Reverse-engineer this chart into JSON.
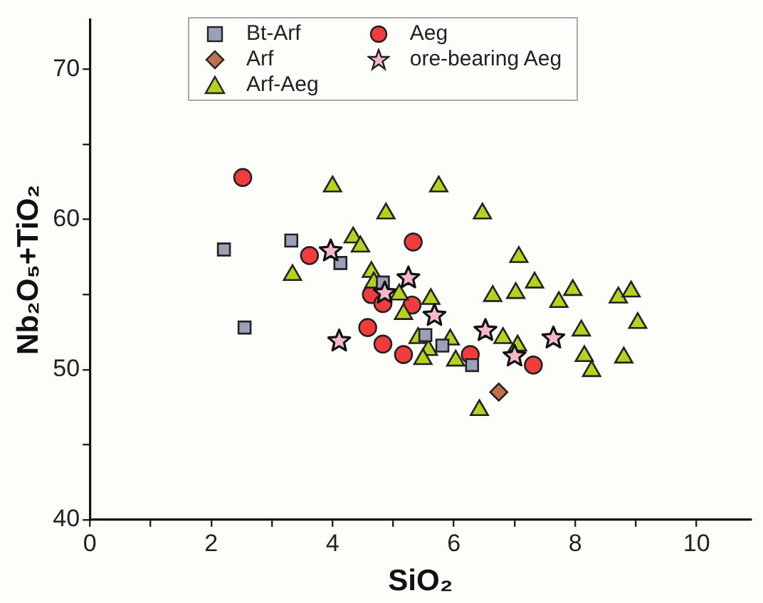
{
  "chart_data": {
    "type": "scatter",
    "xlabel": "SiO₂",
    "ylabel": "Nb₂O₅+TiO₂",
    "xlim": [
      0,
      10.9
    ],
    "ylim": [
      40,
      73.3
    ],
    "xticks": [
      0,
      {
        "value": 1,
        "label": null
      },
      2,
      {
        "value": 3,
        "label": null
      },
      4,
      {
        "value": 5,
        "label": null
      },
      6,
      {
        "value": 7,
        "label": null
      },
      8,
      {
        "value": 9,
        "label": null
      },
      10
    ],
    "yticks": [
      40,
      {
        "value": 45,
        "label": null
      },
      50,
      {
        "value": 55,
        "label": null
      },
      60,
      {
        "value": 65,
        "label": null
      },
      70
    ],
    "grid": false,
    "legend": "top left",
    "series": [
      {
        "name": "Bt-Arf",
        "color": "#9aa0b8",
        "marker": "square",
        "x": [
          2.21,
          2.55,
          3.32,
          4.13,
          4.83,
          5.53,
          5.81,
          6.3
        ],
        "values": [
          58.0,
          52.8,
          58.6,
          57.1,
          55.8,
          52.3,
          51.6,
          50.3
        ]
      },
      {
        "name": "Arf",
        "color": "#c0704c",
        "marker": "diamond",
        "x": [
          6.74
        ],
        "values": [
          48.5
        ]
      },
      {
        "name": "Arf-Aeg",
        "color": "#b8d020",
        "marker": "triangle",
        "x": [
          4.0,
          5.75,
          4.88,
          6.47,
          4.34,
          4.46,
          3.34,
          4.64,
          4.68,
          5.1,
          5.62,
          5.17,
          6.64,
          7.07,
          7.33,
          7.02,
          7.96,
          7.73,
          8.71,
          8.92,
          9.03,
          8.1,
          8.15,
          8.27,
          8.8,
          5.41,
          5.58,
          5.49,
          5.94,
          6.03,
          6.81,
          7.05,
          6.42
        ],
        "values": [
          62.2,
          62.2,
          60.4,
          60.4,
          58.8,
          58.2,
          56.3,
          56.5,
          55.8,
          55.0,
          54.7,
          53.7,
          54.9,
          57.5,
          55.8,
          55.1,
          55.3,
          54.5,
          54.8,
          55.2,
          53.1,
          52.6,
          50.9,
          49.9,
          50.8,
          52.1,
          51.3,
          50.7,
          52.0,
          50.6,
          52.1,
          51.6,
          47.3
        ]
      },
      {
        "name": "Aeg",
        "color": "#f03c3c",
        "marker": "circle",
        "x": [
          2.52,
          3.62,
          5.33,
          4.64,
          4.83,
          5.31,
          4.58,
          4.83,
          5.17,
          6.27,
          7.31
        ],
        "values": [
          62.8,
          57.6,
          58.5,
          55.0,
          54.4,
          54.3,
          52.8,
          51.7,
          51.0,
          51.0,
          50.3
        ]
      },
      {
        "name": "ore-bearing Aeg",
        "color": "#f4b8c8",
        "marker": "star",
        "x": [
          3.97,
          4.11,
          4.86,
          5.25,
          5.68,
          6.52,
          7.0,
          7.64
        ],
        "values": [
          57.9,
          51.9,
          55.1,
          56.1,
          53.6,
          52.6,
          50.9,
          52.1
        ]
      }
    ]
  }
}
